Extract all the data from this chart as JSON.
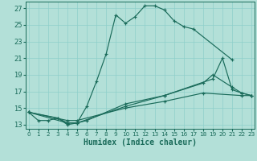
{
  "xlabel": "Humidex (Indice chaleur)",
  "bg_color": "#b3e0d8",
  "line_color": "#1a6b5a",
  "grid_color": "#8ecfca",
  "series": [
    {
      "x": [
        0,
        1,
        2,
        3,
        4,
        5,
        6,
        7,
        8,
        9,
        10,
        11,
        12,
        13,
        14,
        15,
        16,
        17,
        21
      ],
      "y": [
        14.5,
        13.5,
        13.5,
        13.8,
        13.0,
        13.2,
        15.2,
        18.2,
        21.5,
        26.2,
        25.2,
        26.0,
        27.3,
        27.3,
        26.8,
        25.5,
        24.8,
        24.5,
        20.8
      ]
    },
    {
      "x": [
        0,
        3,
        4,
        5,
        6,
        10,
        14,
        19,
        20,
        21,
        22,
        23
      ],
      "y": [
        14.5,
        13.8,
        13.2,
        13.2,
        13.5,
        15.5,
        16.5,
        18.5,
        21.0,
        17.2,
        16.8,
        16.5
      ]
    },
    {
      "x": [
        0,
        4,
        5,
        10,
        14,
        18,
        19,
        21,
        22,
        23
      ],
      "y": [
        14.5,
        13.2,
        13.2,
        15.2,
        16.5,
        18.0,
        19.0,
        17.5,
        16.8,
        16.5
      ]
    },
    {
      "x": [
        0,
        4,
        5,
        10,
        14,
        18,
        22,
        23
      ],
      "y": [
        14.5,
        13.5,
        13.5,
        15.0,
        15.8,
        16.8,
        16.5,
        16.5
      ]
    }
  ],
  "xlim": [
    -0.3,
    23.3
  ],
  "ylim": [
    12.5,
    27.8
  ],
  "yticks": [
    13,
    15,
    17,
    19,
    21,
    23,
    25,
    27
  ],
  "xticks": [
    0,
    1,
    2,
    3,
    4,
    5,
    6,
    7,
    8,
    9,
    10,
    11,
    12,
    13,
    14,
    15,
    16,
    17,
    18,
    19,
    20,
    21,
    22,
    23
  ],
  "xlabel_fontsize": 7,
  "tick_fontsize": 6
}
